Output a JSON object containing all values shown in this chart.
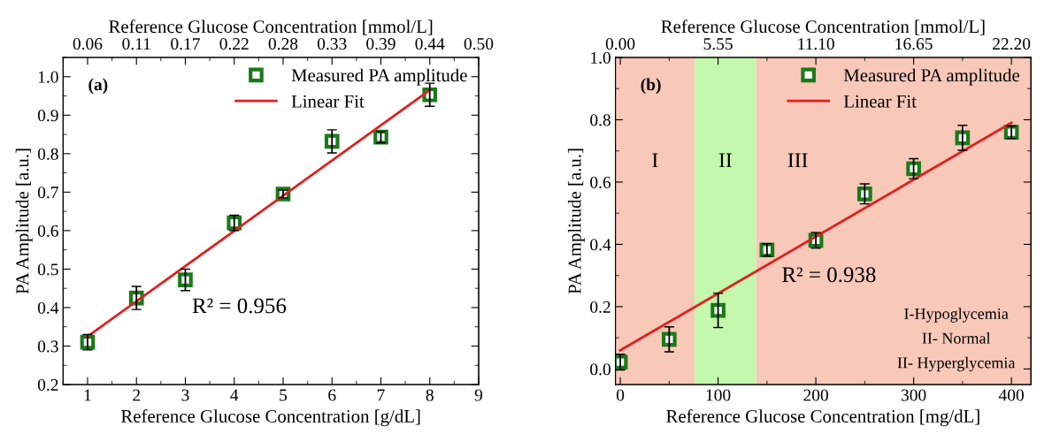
{
  "chart_data": [
    {
      "type": "scatter",
      "xlabel": "Reference Glucose Concentration [g/dL]",
      "ylabel": "PA Amplitude [a.u.]",
      "x2label": "Reference Glucose Concentration [mmol/L]",
      "xlim": [
        0.5,
        9
      ],
      "xticks": [
        1,
        2,
        3,
        4,
        5,
        6,
        7,
        8,
        9
      ],
      "ylim": [
        0.2,
        1.05
      ],
      "yticks": [
        {
          "value": 0.2,
          "label": "0.2"
        },
        {
          "value": 0.3,
          "label": "0.3"
        },
        {
          "value": 0.4,
          "label": "0.4"
        },
        {
          "value": 0.5,
          "label": "0.5"
        },
        {
          "value": 0.6,
          "label": "0.6"
        },
        {
          "value": 0.7,
          "label": "0.7"
        },
        {
          "value": 0.8,
          "label": "0.8"
        },
        {
          "value": 0.9,
          "label": "0.9"
        },
        {
          "value": 1.0,
          "label": "1.0"
        }
      ],
      "x2lim": [
        0.02775,
        0.4995
      ],
      "x2ticks": [
        {
          "value": 0.0555,
          "label": "0.06"
        },
        {
          "value": 0.111,
          "label": "0.11"
        },
        {
          "value": 0.1665,
          "label": "0.17"
        },
        {
          "value": 0.222,
          "label": "0.22"
        },
        {
          "value": 0.2775,
          "label": "0.28"
        },
        {
          "value": 0.333,
          "label": "0.33"
        },
        {
          "value": 0.3885,
          "label": "0.39"
        },
        {
          "value": 0.444,
          "label": "0.44"
        },
        {
          "value": 0.4995,
          "label": "0.50"
        }
      ],
      "x": [
        1,
        2,
        3,
        4,
        5,
        6,
        7,
        8
      ],
      "legend": "top right",
      "grid": false,
      "series": [
        {
          "name": "Measured PA amplitude",
          "marker": "square",
          "color": "#1a7a1a",
          "values": [
            0.31,
            0.425,
            0.472,
            0.62,
            0.695,
            0.832,
            0.843,
            0.953
          ],
          "errors": [
            0.02,
            0.03,
            0.028,
            0.02,
            0.01,
            0.03,
            0.015,
            0.03
          ]
        },
        {
          "name": "Linear Fit",
          "type": "line",
          "color": "#e02020",
          "x": [
            1,
            8
          ],
          "values": [
            0.325,
            0.965
          ]
        }
      ],
      "annotations": [
        "(a)",
        "R² = 0.956"
      ]
    },
    {
      "type": "scatter",
      "xlabel": "Reference Glucose Concentration [mg/dL]",
      "ylabel": "PA Amplitude [a.u.]",
      "x2label": "Reference Glucose Concentration [mmol/L]",
      "xlim": [
        -5,
        420
      ],
      "xticks": [
        0,
        100,
        200,
        300,
        400
      ],
      "ylim": [
        -0.05,
        1.0
      ],
      "yticks": [
        {
          "value": 0.0,
          "label": "0.0"
        },
        {
          "value": 0.2,
          "label": "0.2"
        },
        {
          "value": 0.4,
          "label": "0.4"
        },
        {
          "value": 0.6,
          "label": "0.6"
        },
        {
          "value": 0.8,
          "label": "0.8"
        },
        {
          "value": 1.0,
          "label": "1.0"
        }
      ],
      "x2lim": [
        -0.2775,
        23.31
      ],
      "x2ticks": [
        {
          "value": 0,
          "label": "0.00"
        },
        {
          "value": 5.55,
          "label": "5.55"
        },
        {
          "value": 11.1,
          "label": "11.10"
        },
        {
          "value": 16.65,
          "label": "16.65"
        },
        {
          "value": 22.2,
          "label": "22.20"
        }
      ],
      "x": [
        0,
        50,
        100,
        150,
        200,
        250,
        300,
        350,
        400
      ],
      "legend": "top right",
      "grid": false,
      "bands": [
        {
          "axis": "x",
          "from": -5,
          "to": 76,
          "label": "I",
          "color": "#f8c8b8"
        },
        {
          "axis": "x",
          "from": 76,
          "to": 139,
          "label": "II",
          "color": "#c4f8ac"
        },
        {
          "axis": "x",
          "from": 139,
          "to": 420,
          "label": "III",
          "color": "#f8c8b8"
        }
      ],
      "series": [
        {
          "name": "Measured PA amplitude",
          "marker": "square",
          "color": "#1a7a1a",
          "values": [
            0.022,
            0.095,
            0.188,
            0.382,
            0.413,
            0.562,
            0.643,
            0.742,
            0.76
          ],
          "errors": [
            0.025,
            0.04,
            0.055,
            0.02,
            0.025,
            0.032,
            0.032,
            0.04,
            0.02
          ]
        },
        {
          "name": "Linear Fit",
          "type": "line",
          "color": "#e02020",
          "x": [
            0,
            400
          ],
          "values": [
            0.06,
            0.79
          ]
        }
      ],
      "annotations": [
        "(b)",
        "R² = 0.938",
        "I-Hypoglycemia",
        "II- Normal",
        "II- Hyperglycemia"
      ]
    }
  ]
}
